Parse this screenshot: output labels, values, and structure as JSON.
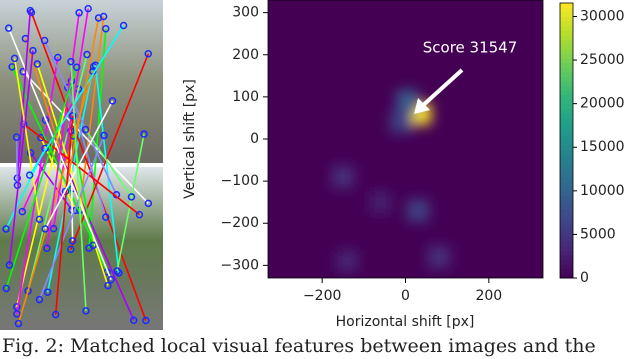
{
  "chart_data": {
    "type": "heatmap",
    "xlabel": "Horizontal shift [px]",
    "ylabel": "Vertical shift [px]",
    "xlim": [
      -330,
      330
    ],
    "ylim": [
      -330,
      330
    ],
    "xticks": [
      {
        "value": -200,
        "label": "−200"
      },
      0,
      200
    ],
    "yticks": [
      {
        "value": -300,
        "label": "−300"
      },
      {
        "value": -200,
        "label": "−200"
      },
      {
        "value": -100,
        "label": "−100"
      },
      0,
      100,
      200,
      300
    ],
    "clim": [
      0,
      31547
    ],
    "cticks": [
      0,
      5000,
      10000,
      15000,
      20000,
      25000,
      30000
    ],
    "colormap": [
      "#440154",
      "#482878",
      "#3e4989",
      "#31688e",
      "#26828e",
      "#1f9e89",
      "#35b779",
      "#6ece58",
      "#b5de2b",
      "#fde725"
    ],
    "blobs": [
      {
        "x": 35,
        "y": 60,
        "value": 31547
      },
      {
        "x": 5,
        "y": 90,
        "value": 9000
      },
      {
        "x": -10,
        "y": 40,
        "value": 6000
      },
      {
        "x": -150,
        "y": -90,
        "value": 4000
      },
      {
        "x": 30,
        "y": -170,
        "value": 6000
      },
      {
        "x": -140,
        "y": -290,
        "value": 3000
      },
      {
        "x": 80,
        "y": -280,
        "value": 4000
      },
      {
        "x": -60,
        "y": -150,
        "value": 2500
      }
    ],
    "annotation": "Score 31547"
  },
  "caption": "Fig. 2: Matched local visual features between images and the"
}
